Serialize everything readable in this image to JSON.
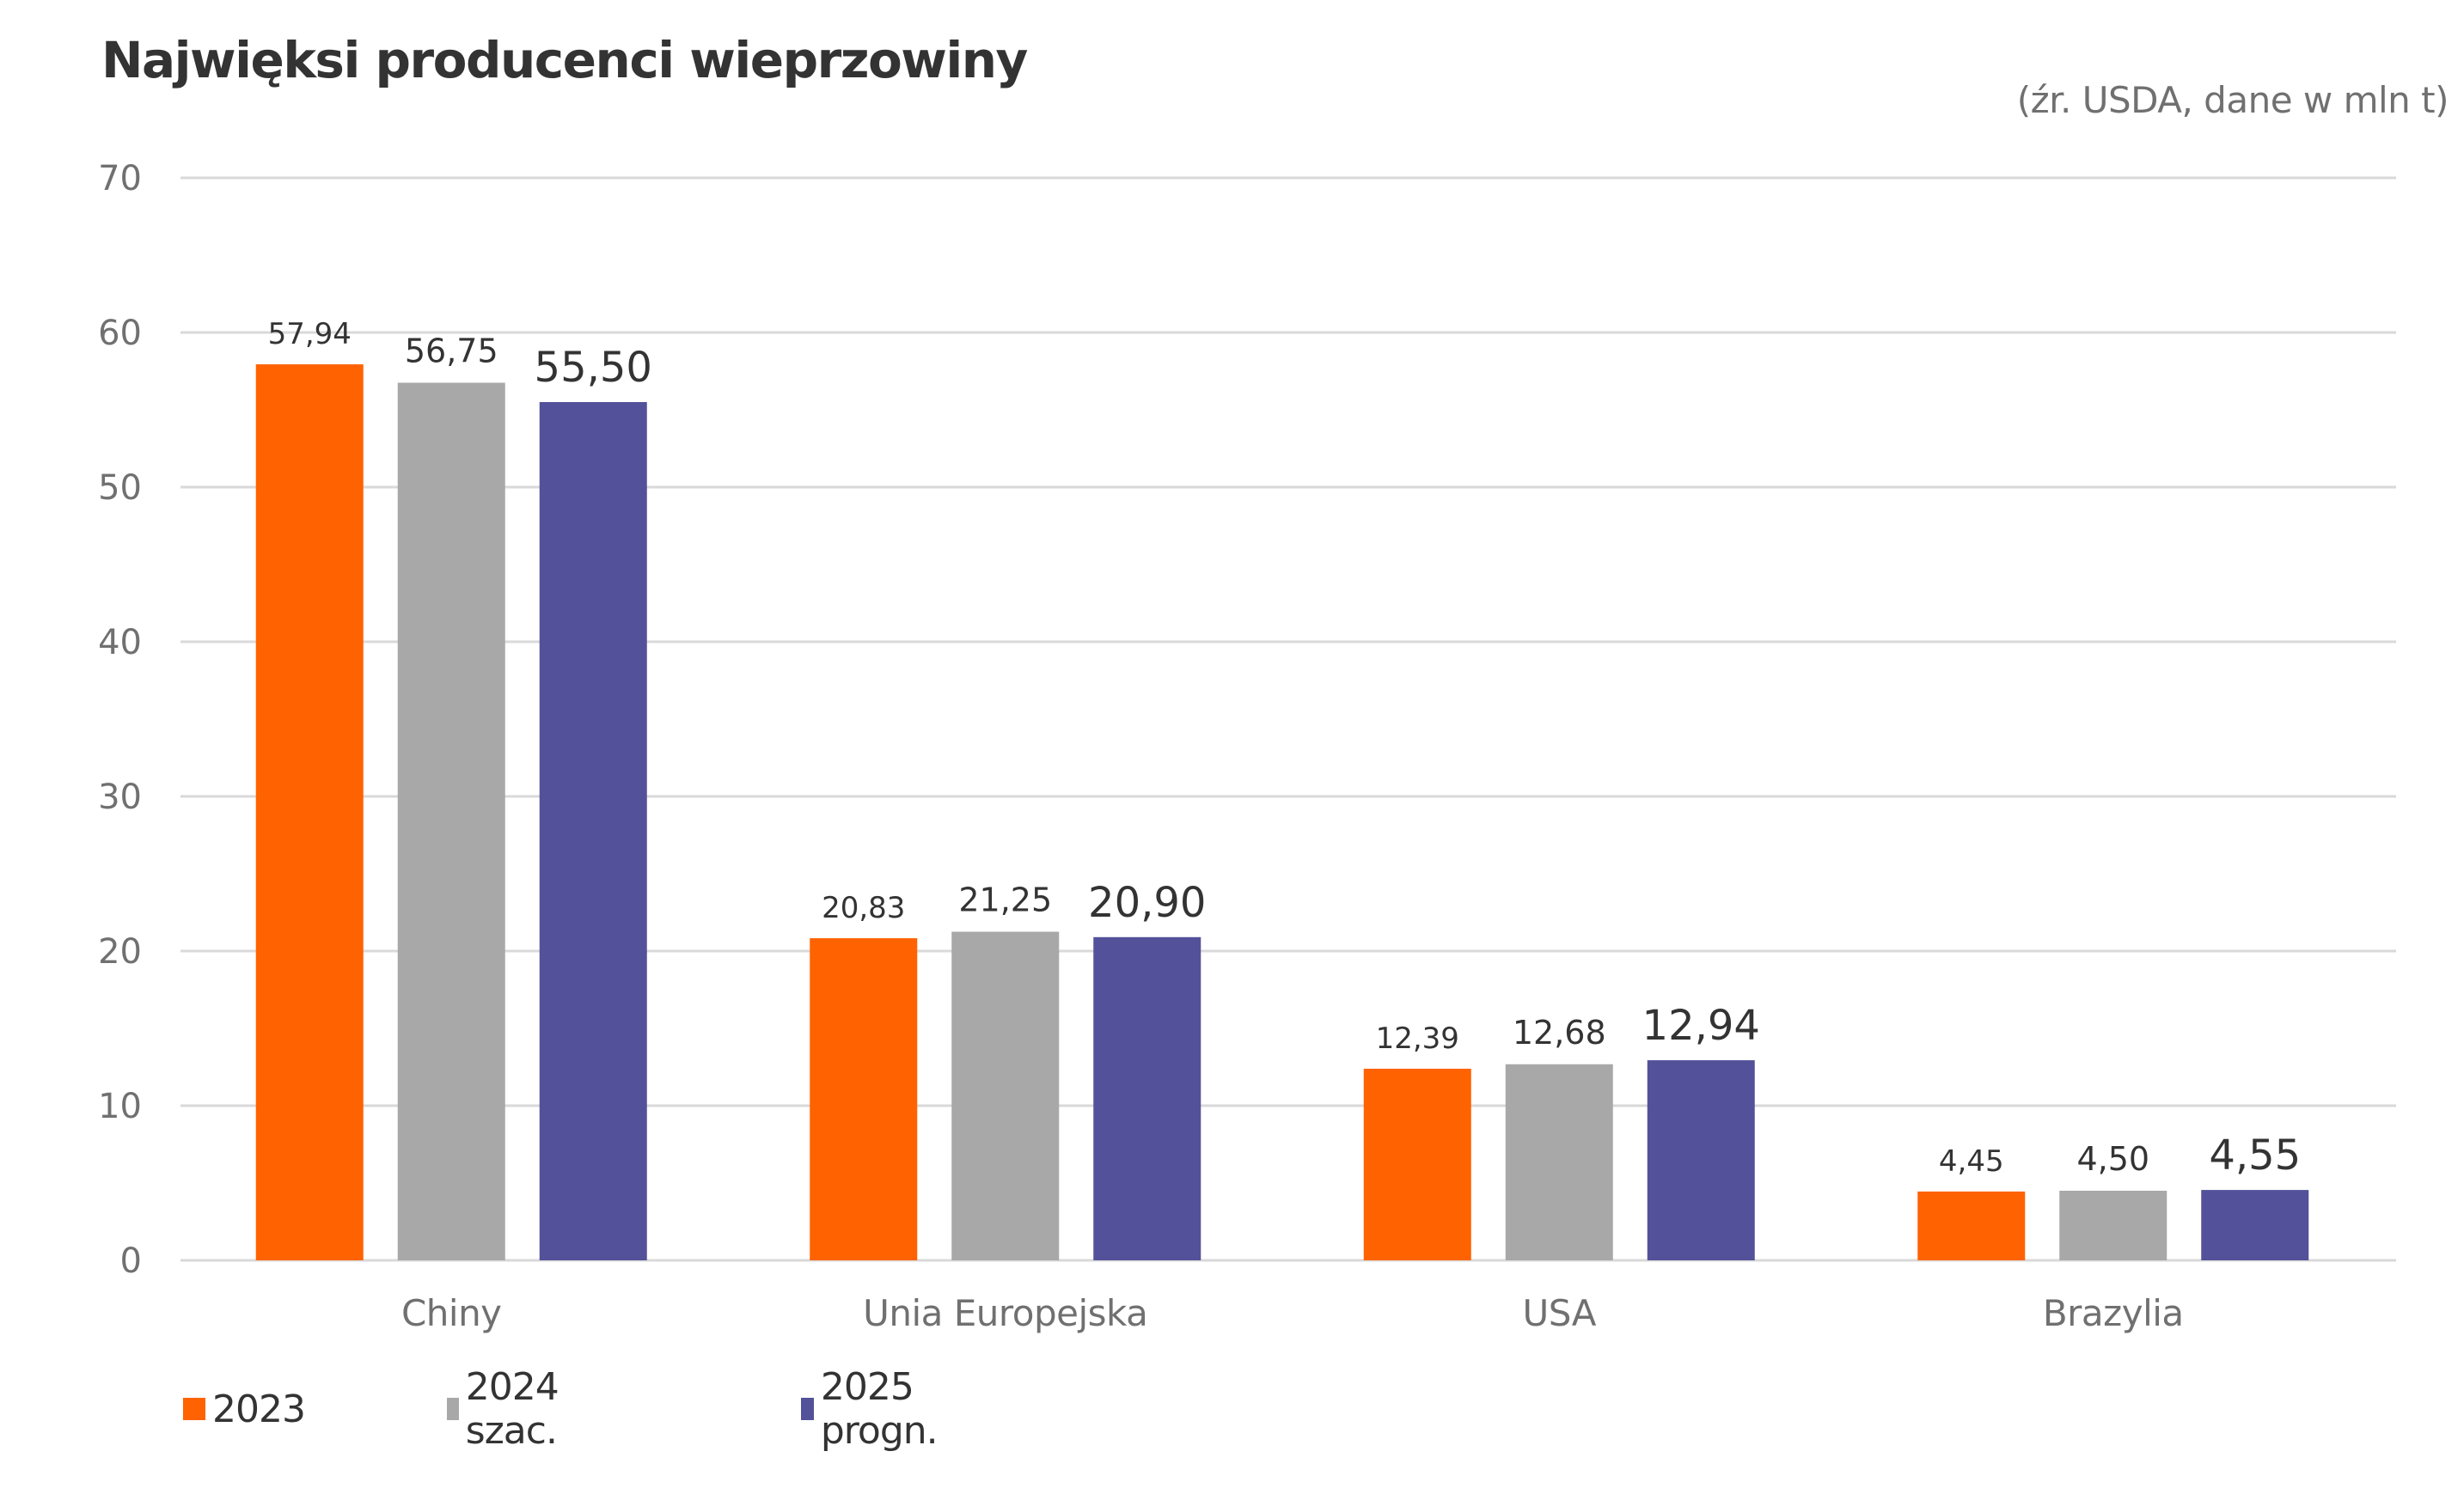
{
  "chart_data": {
    "type": "bar",
    "title": "Najwięksi producenci wieprzowiny",
    "subtitle": "(źr. USDA, dane w mln t)",
    "xlabel": "",
    "ylabel": "",
    "ylim": [
      0,
      70
    ],
    "yticks": [
      0,
      10,
      20,
      30,
      40,
      50,
      60,
      70
    ],
    "grid": true,
    "legend_position": "bottom-left",
    "categories": [
      "Chiny",
      "Unia Europejska",
      "USA",
      "Brazylia"
    ],
    "series": [
      {
        "name": "2023",
        "color": "#FF6200",
        "values": [
          57.94,
          20.83,
          12.39,
          4.45
        ],
        "labels": [
          "57,94",
          "20,83",
          "12,39",
          "4,45"
        ]
      },
      {
        "name": "2024 szac.",
        "color": "#A8A8A8",
        "values": [
          56.75,
          21.25,
          12.68,
          4.5
        ],
        "labels": [
          "56,75",
          "21,25",
          "12,68",
          "4,50"
        ]
      },
      {
        "name": "2025 progn.",
        "color": "#525199",
        "values": [
          55.5,
          20.9,
          12.94,
          4.55
        ],
        "labels": [
          "55,50",
          "20,90",
          "12,94",
          "4,55"
        ]
      }
    ]
  },
  "colors": {
    "grid": "#D9D9D9",
    "axis_text": "#707070",
    "label_text": "#333333"
  }
}
